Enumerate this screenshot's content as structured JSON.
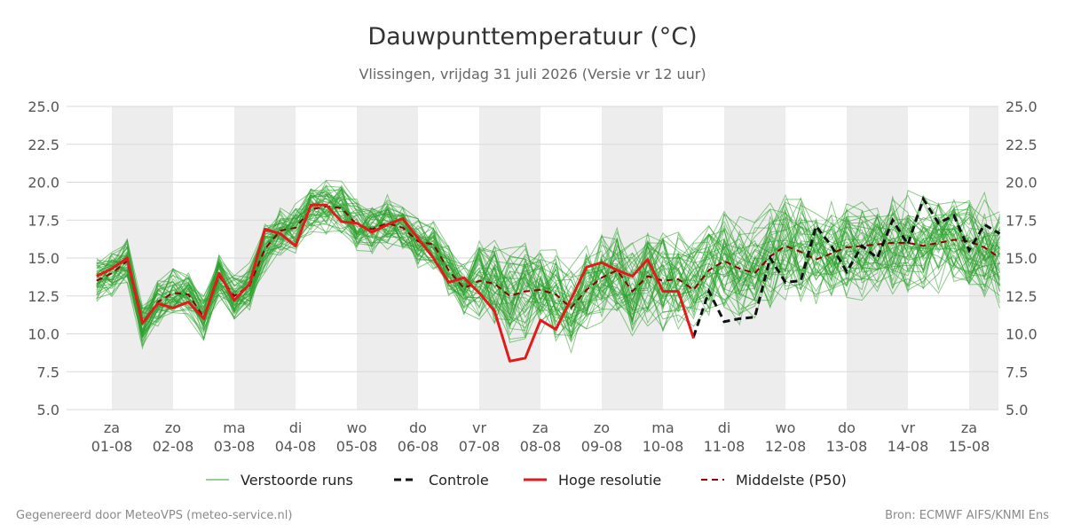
{
  "chart_data": {
    "type": "line",
    "title": "Dauwpunttemperatuur (°C)",
    "subtitle": "Vlissingen, vrijdag 31 juli 2026 (Versie vr 12 uur)",
    "ylim": [
      5.0,
      25.0
    ],
    "y_ticks": [
      "25.0",
      "22.5",
      "20.0",
      "17.5",
      "15.0",
      "12.5",
      "10.0",
      "7.5",
      "5.0"
    ],
    "y_tick_values": [
      25.0,
      22.5,
      20.0,
      17.5,
      15.0,
      12.5,
      10.0,
      7.5,
      5.0
    ],
    "x_start_day": 0.0,
    "x_end_day": 14.5,
    "x_tick_labels": [
      {
        "day": "za",
        "date": "01-08"
      },
      {
        "day": "zo",
        "date": "02-08"
      },
      {
        "day": "ma",
        "date": "03-08"
      },
      {
        "day": "di",
        "date": "04-08"
      },
      {
        "day": "wo",
        "date": "05-08"
      },
      {
        "day": "do",
        "date": "06-08"
      },
      {
        "day": "vr",
        "date": "07-08"
      },
      {
        "day": "za",
        "date": "08-08"
      },
      {
        "day": "zo",
        "date": "09-08"
      },
      {
        "day": "ma",
        "date": "10-08"
      },
      {
        "day": "di",
        "date": "11-08"
      },
      {
        "day": "wo",
        "date": "12-08"
      },
      {
        "day": "do",
        "date": "13-08"
      },
      {
        "day": "vr",
        "date": "14-08"
      },
      {
        "day": "za",
        "date": "15-08"
      }
    ],
    "shaded_weekend_bands": true,
    "legend_position": "bottom",
    "grid": true,
    "series_style": {
      "ensemble": {
        "name": "Verstoorde runs",
        "color": "#2ca02c"
      },
      "control": {
        "name": "Controle",
        "color": "#111111"
      },
      "hires": {
        "name": "Hoge resolutie",
        "color": "#e31a1c"
      },
      "median": {
        "name": "Middelste (P50)",
        "color": "#8b0000"
      }
    },
    "hires": {
      "x_day": [
        -0.25,
        0.0,
        0.25,
        0.5,
        0.75,
        1.0,
        1.25,
        1.5,
        1.75,
        2.0,
        2.25,
        2.5,
        2.75,
        3.0,
        3.25,
        3.5,
        3.75,
        4.0,
        4.25,
        4.5,
        4.75,
        5.0,
        5.25,
        5.5,
        5.75,
        6.0,
        6.25,
        6.5,
        6.75,
        7.0,
        7.25,
        7.5,
        7.75,
        8.0,
        8.25,
        8.5,
        8.75,
        9.0,
        9.25,
        9.5
      ],
      "values": [
        13.8,
        14.3,
        15.0,
        10.7,
        12.0,
        11.7,
        12.1,
        11.0,
        14.0,
        12.2,
        13.3,
        16.9,
        16.6,
        15.8,
        18.5,
        18.5,
        17.4,
        17.3,
        16.7,
        17.2,
        17.6,
        16.3,
        15.0,
        13.4,
        13.7,
        12.7,
        11.5,
        8.2,
        8.4,
        10.9,
        10.3,
        12.3,
        14.4,
        14.7,
        14.2,
        13.8,
        14.9,
        12.8,
        12.8,
        9.7
      ]
    },
    "median": {
      "x_day": [
        -0.25,
        0.0,
        0.25,
        0.5,
        0.75,
        1.0,
        1.25,
        1.5,
        1.75,
        2.0,
        2.25,
        2.5,
        2.75,
        3.0,
        3.25,
        3.5,
        3.75,
        4.0,
        4.25,
        4.5,
        4.75,
        5.0,
        5.25,
        5.5,
        5.75,
        6.0,
        6.25,
        6.5,
        6.75,
        7.0,
        7.25,
        7.5,
        7.75,
        8.0,
        8.25,
        8.5,
        8.75,
        9.0,
        9.25,
        9.5,
        9.75,
        10.0,
        10.25,
        10.5,
        10.75,
        11.0,
        11.25,
        11.5,
        11.75,
        12.0,
        12.25,
        12.5,
        12.75,
        13.0,
        13.25,
        13.5,
        13.75,
        14.0,
        14.25,
        14.5
      ],
      "values": [
        13.5,
        14.0,
        14.8,
        10.6,
        12.1,
        12.7,
        12.6,
        11.1,
        13.8,
        12.5,
        13.2,
        15.6,
        16.8,
        17.0,
        18.2,
        18.4,
        18.3,
        17.2,
        16.9,
        17.3,
        17.0,
        16.1,
        15.9,
        14.2,
        13.0,
        13.5,
        13.3,
        12.5,
        12.8,
        12.9,
        12.6,
        11.7,
        12.9,
        13.7,
        14.2,
        12.8,
        13.8,
        13.5,
        13.6,
        12.9,
        14.2,
        14.8,
        14.3,
        14.0,
        15.1,
        15.8,
        15.4,
        14.9,
        15.3,
        15.7,
        15.8,
        15.9,
        16.0,
        16.0,
        15.8,
        16.0,
        16.2,
        16.1,
        15.7,
        15.0
      ]
    },
    "control": {
      "x_day": [
        9.5,
        9.75,
        10.0,
        10.25,
        10.5,
        10.75,
        11.0,
        11.25,
        11.5,
        11.75,
        12.0,
        12.25,
        12.5,
        12.75,
        13.0,
        13.25,
        13.5,
        13.75,
        14.0,
        14.25,
        14.5
      ],
      "values": [
        9.8,
        12.8,
        10.8,
        11.0,
        11.1,
        15.0,
        13.4,
        13.5,
        17.1,
        15.8,
        14.1,
        15.8,
        15.0,
        17.5,
        15.9,
        18.9,
        17.3,
        17.8,
        15.5,
        17.2,
        16.6
      ]
    },
    "ensemble_summary": {
      "runs": 50,
      "min": 6.9,
      "max": 21.2
    }
  },
  "legend": {
    "ensemble": "Verstoorde runs",
    "control": "Controle",
    "hires": "Hoge resolutie",
    "median": "Middelste (P50)"
  },
  "footer": {
    "left": "Gegenereerd door MeteoVPS (meteo-service.nl)",
    "right": "Bron: ECMWF AIFS/KNMI Ens"
  }
}
